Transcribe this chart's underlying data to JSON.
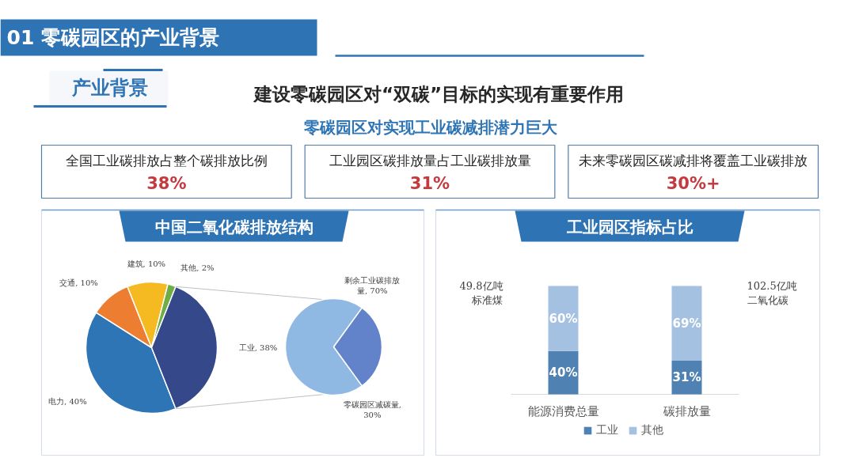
{
  "chart_data": [
    {
      "type": "other",
      "title": "01 零碳园区的产业背景",
      "subtitle": "建设零碳园区对“双碳”目标的实现有重要作用",
      "annotations": [
        "产业背景",
        "零碳园区对实现工业碳减排潜力巨大",
        "全国工业碳排放占整个碳排放比例",
        "38%",
        "工业园区碳排放量占工业碳排放量",
        "31%",
        "未来零碳园区碳减排将覆盖工业碳排放",
        "30%+"
      ]
    },
    {
      "type": "pie",
      "title": "中国二氧化碳排放结构",
      "values": [
        40,
        10,
        10,
        2,
        38
      ],
      "colors": [
        "#2e75b6",
        "#ed7d31",
        "#f5b922",
        "#70ad47",
        "#34488a"
      ],
      "value_labels": [
        "电力, 40%",
        "交通, 10%",
        "建筑, 10%",
        "其他, 2%",
        "工业, 38%"
      ]
    },
    {
      "type": "pie",
      "values": [
        70,
        30
      ],
      "colors": [
        "#8fb8e2",
        "#6283c9"
      ],
      "value_labels": [
        "剩余工业碳排放量, 70%",
        "零碳园区减碳量, 30%"
      ]
    },
    {
      "type": "bar",
      "title": "工业园区指标占比",
      "categories": [
        "能源消费总量",
        "碳排放量"
      ],
      "stacked": true,
      "series": [
        {
          "name": "工业",
          "color": "#4f82b3",
          "values": [
            40,
            31
          ],
          "value_labels": [
            "40%",
            "31%"
          ]
        },
        {
          "name": "其他",
          "color": "#a5c1e2",
          "values": [
            60,
            69
          ],
          "value_labels": [
            "60%",
            "69%"
          ]
        }
      ],
      "legend": "bottom",
      "annotations": [
        "49.8亿吨标准煤",
        "102.5亿吨二氧化碳"
      ]
    }
  ]
}
